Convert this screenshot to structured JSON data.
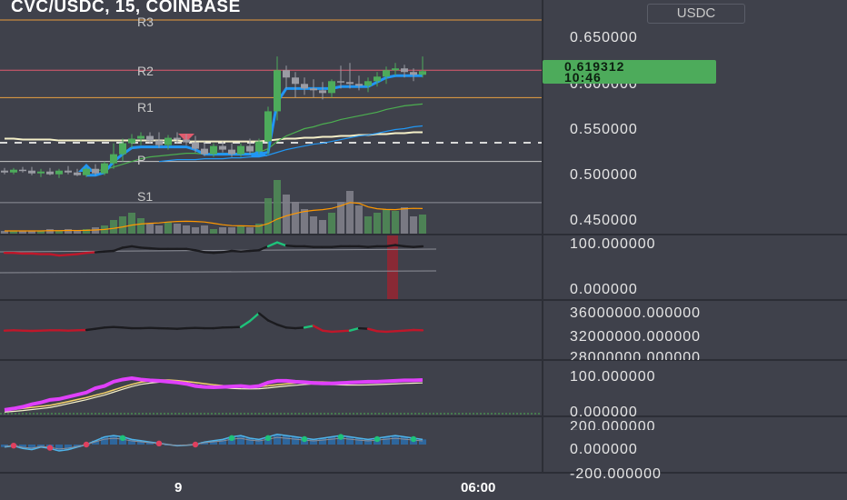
{
  "header": {
    "title": "CVC/USDC, 15, COINBASE",
    "quote_currency": "USDC"
  },
  "price_tag": {
    "price": "0.619312",
    "countdown": "10:46",
    "color": "#4dab5b"
  },
  "pivot_labels": [
    "R3",
    "R2",
    "R1",
    "P",
    "S1"
  ],
  "price_axis": {
    "ticks": [
      "0.650000",
      "0.600000",
      "0.550000",
      "0.500000",
      "0.450000"
    ]
  },
  "panes": {
    "osc1": {
      "ticks": [
        "100.000000",
        "0.000000"
      ]
    },
    "osc2": {
      "ticks": [
        "36000000.000000",
        "32000000.000000",
        "28000000.000000"
      ]
    },
    "osc3": {
      "ticks": [
        "100.000000",
        "0.000000"
      ]
    },
    "osc4": {
      "ticks": [
        "200.000000",
        "0.000000",
        "-200.000000"
      ]
    }
  },
  "time_axis": {
    "labels": [
      "9",
      "06:00"
    ]
  },
  "colors": {
    "background": "#3f414b",
    "up": "#4dab5b",
    "down": "#9a9ba3",
    "ema_fast": "#4caf50",
    "ema_slow": "#2196f3",
    "ma_long": "#f5f0c8",
    "supertrend": "#2196f3",
    "pivot": "#b0b0b0",
    "volume_ma": "#ff9800",
    "red_line": "#c0172a",
    "magenta": "#e040fb"
  },
  "chart_data": {
    "type": "candlestick",
    "symbol": "CVC/USDC",
    "interval": "15",
    "exchange": "COINBASE",
    "ylim": [
      0.44,
      0.675
    ],
    "pivots": {
      "R3": 0.675,
      "R2": 0.62,
      "R1": 0.59,
      "P": 0.52,
      "S1": 0.475
    },
    "candles": [
      {
        "o": 0.51,
        "h": 0.513,
        "l": 0.506,
        "c": 0.508
      },
      {
        "o": 0.508,
        "h": 0.513,
        "l": 0.506,
        "c": 0.511
      },
      {
        "o": 0.511,
        "h": 0.514,
        "l": 0.508,
        "c": 0.51
      },
      {
        "o": 0.51,
        "h": 0.514,
        "l": 0.505,
        "c": 0.507
      },
      {
        "o": 0.507,
        "h": 0.512,
        "l": 0.503,
        "c": 0.509
      },
      {
        "o": 0.509,
        "h": 0.513,
        "l": 0.505,
        "c": 0.506
      },
      {
        "o": 0.506,
        "h": 0.512,
        "l": 0.502,
        "c": 0.51
      },
      {
        "o": 0.51,
        "h": 0.515,
        "l": 0.506,
        "c": 0.508
      },
      {
        "o": 0.508,
        "h": 0.512,
        "l": 0.504,
        "c": 0.505
      },
      {
        "o": 0.505,
        "h": 0.514,
        "l": 0.503,
        "c": 0.512
      },
      {
        "o": 0.512,
        "h": 0.517,
        "l": 0.505,
        "c": 0.507
      },
      {
        "o": 0.507,
        "h": 0.52,
        "l": 0.505,
        "c": 0.518
      },
      {
        "o": 0.518,
        "h": 0.54,
        "l": 0.512,
        "c": 0.528
      },
      {
        "o": 0.528,
        "h": 0.545,
        "l": 0.52,
        "c": 0.54
      },
      {
        "o": 0.54,
        "h": 0.55,
        "l": 0.535,
        "c": 0.545
      },
      {
        "o": 0.545,
        "h": 0.552,
        "l": 0.538,
        "c": 0.548
      },
      {
        "o": 0.548,
        "h": 0.552,
        "l": 0.54,
        "c": 0.543
      },
      {
        "o": 0.543,
        "h": 0.552,
        "l": 0.535,
        "c": 0.538
      },
      {
        "o": 0.538,
        "h": 0.549,
        "l": 0.533,
        "c": 0.546
      },
      {
        "o": 0.546,
        "h": 0.552,
        "l": 0.54,
        "c": 0.544
      },
      {
        "o": 0.544,
        "h": 0.55,
        "l": 0.538,
        "c": 0.541
      },
      {
        "o": 0.541,
        "h": 0.548,
        "l": 0.53,
        "c": 0.534
      },
      {
        "o": 0.534,
        "h": 0.542,
        "l": 0.526,
        "c": 0.528
      },
      {
        "o": 0.528,
        "h": 0.54,
        "l": 0.525,
        "c": 0.537
      },
      {
        "o": 0.537,
        "h": 0.542,
        "l": 0.53,
        "c": 0.533
      },
      {
        "o": 0.533,
        "h": 0.54,
        "l": 0.525,
        "c": 0.528
      },
      {
        "o": 0.528,
        "h": 0.54,
        "l": 0.525,
        "c": 0.537
      },
      {
        "o": 0.537,
        "h": 0.545,
        "l": 0.528,
        "c": 0.531
      },
      {
        "o": 0.531,
        "h": 0.545,
        "l": 0.528,
        "c": 0.542
      },
      {
        "o": 0.542,
        "h": 0.58,
        "l": 0.528,
        "c": 0.575
      },
      {
        "o": 0.575,
        "h": 0.635,
        "l": 0.565,
        "c": 0.62
      },
      {
        "o": 0.62,
        "h": 0.625,
        "l": 0.6,
        "c": 0.612
      },
      {
        "o": 0.612,
        "h": 0.618,
        "l": 0.59,
        "c": 0.605
      },
      {
        "o": 0.605,
        "h": 0.612,
        "l": 0.593,
        "c": 0.6
      },
      {
        "o": 0.6,
        "h": 0.61,
        "l": 0.59,
        "c": 0.598
      },
      {
        "o": 0.598,
        "h": 0.607,
        "l": 0.588,
        "c": 0.595
      },
      {
        "o": 0.595,
        "h": 0.61,
        "l": 0.59,
        "c": 0.608
      },
      {
        "o": 0.608,
        "h": 0.625,
        "l": 0.6,
        "c": 0.607
      },
      {
        "o": 0.607,
        "h": 0.628,
        "l": 0.6,
        "c": 0.605
      },
      {
        "o": 0.605,
        "h": 0.614,
        "l": 0.598,
        "c": 0.603
      },
      {
        "o": 0.603,
        "h": 0.612,
        "l": 0.596,
        "c": 0.608
      },
      {
        "o": 0.608,
        "h": 0.618,
        "l": 0.602,
        "c": 0.613
      },
      {
        "o": 0.613,
        "h": 0.624,
        "l": 0.605,
        "c": 0.62
      },
      {
        "o": 0.62,
        "h": 0.628,
        "l": 0.614,
        "c": 0.622
      },
      {
        "o": 0.622,
        "h": 0.626,
        "l": 0.612,
        "c": 0.618
      },
      {
        "o": 0.618,
        "h": 0.622,
        "l": 0.608,
        "c": 0.615
      },
      {
        "o": 0.615,
        "h": 0.635,
        "l": 0.612,
        "c": 0.619
      }
    ],
    "volume": [
      2,
      2,
      2,
      2,
      2,
      3,
      2,
      3,
      2,
      3,
      4,
      5,
      8,
      10,
      12,
      9,
      6,
      5,
      7,
      6,
      5,
      4,
      5,
      3,
      4,
      4,
      5,
      4,
      6,
      20,
      30,
      22,
      18,
      14,
      10,
      8,
      12,
      18,
      24,
      16,
      10,
      12,
      14,
      13,
      15,
      10,
      11
    ],
    "volume_ylim": [
      0,
      36
    ],
    "ma_long": [
      0.545,
      0.545,
      0.544,
      0.544,
      0.544,
      0.544,
      0.543,
      0.543,
      0.543,
      0.543,
      0.543,
      0.543,
      0.543,
      0.543,
      0.543,
      0.543,
      0.543,
      0.543,
      0.543,
      0.543,
      0.542,
      0.542,
      0.542,
      0.542,
      0.542,
      0.542,
      0.542,
      0.542,
      0.542,
      0.543,
      0.544,
      0.545,
      0.545,
      0.546,
      0.546,
      0.547,
      0.547,
      0.548,
      0.548,
      0.549,
      0.549,
      0.55,
      0.55,
      0.551,
      0.551,
      0.552,
      0.552
    ],
    "ema_fast": [
      null,
      null,
      null,
      null,
      null,
      null,
      null,
      null,
      null,
      null,
      0.51,
      0.511,
      0.514,
      0.517,
      0.52,
      0.523,
      0.525,
      0.526,
      0.527,
      0.528,
      0.529,
      0.529,
      0.528,
      0.529,
      0.529,
      0.529,
      0.529,
      0.529,
      0.53,
      0.534,
      0.542,
      0.548,
      0.552,
      0.556,
      0.558,
      0.561,
      0.563,
      0.566,
      0.568,
      0.57,
      0.572,
      0.574,
      0.577,
      0.579,
      0.581,
      0.582,
      0.583
    ],
    "ema_slow": [
      null,
      null,
      null,
      null,
      null,
      null,
      null,
      null,
      null,
      null,
      null,
      null,
      null,
      null,
      null,
      null,
      null,
      0.52,
      0.521,
      0.522,
      0.522,
      0.522,
      0.523,
      0.523,
      0.523,
      0.524,
      0.524,
      0.525,
      0.525,
      0.527,
      0.53,
      0.533,
      0.535,
      0.537,
      0.539,
      0.54,
      0.542,
      0.544,
      0.546,
      0.548,
      0.549,
      0.551,
      0.553,
      0.555,
      0.556,
      0.558,
      0.559
    ],
    "supertrend": [
      null,
      null,
      null,
      null,
      null,
      null,
      null,
      null,
      null,
      0.505,
      0.505,
      0.508,
      0.52,
      0.528,
      0.535,
      0.536,
      0.536,
      0.536,
      0.536,
      0.536,
      0.536,
      0.533,
      0.528,
      0.528,
      0.528,
      0.528,
      0.528,
      0.528,
      0.528,
      0.53,
      0.585,
      0.6,
      0.6,
      0.6,
      0.6,
      0.6,
      0.6,
      0.602,
      0.602,
      0.602,
      0.602,
      0.607,
      0.612,
      0.614,
      0.614,
      0.614,
      0.614
    ],
    "osc1": [
      72,
      72,
      71,
      71,
      70,
      70,
      68,
      69,
      70,
      72,
      73,
      74,
      75,
      80,
      82,
      80,
      79,
      78,
      78,
      78,
      78,
      76,
      73,
      72,
      73,
      75,
      74,
      75,
      76,
      82,
      88,
      83,
      82,
      82,
      81,
      81,
      81,
      82,
      82,
      82,
      81,
      82,
      82,
      84,
      82,
      81,
      82
    ],
    "osc1_ylim": [
      0,
      100
    ],
    "osc2": [
      31900000,
      31950000,
      31900000,
      31850000,
      31900000,
      31950000,
      31950000,
      31900000,
      31950000,
      32000000,
      32200000,
      32400000,
      32500000,
      32400000,
      32300000,
      32300000,
      32350000,
      32300000,
      32250000,
      32200000,
      32300000,
      32350000,
      32300000,
      32300000,
      32400000,
      32450000,
      32500000,
      33500000,
      34800000,
      33600000,
      32900000,
      32400000,
      32300000,
      32400000,
      32700000,
      31900000,
      31700000,
      31800000,
      31900000,
      32300000,
      32200000,
      31800000,
      31700000,
      31800000,
      31900000,
      32000000,
      31950000
    ],
    "osc2_ylim": [
      27000000,
      37000000
    ],
    "osc3": [
      5,
      8,
      12,
      18,
      22,
      28,
      30,
      35,
      40,
      45,
      55,
      60,
      70,
      75,
      78,
      75,
      73,
      72,
      70,
      68,
      65,
      60,
      58,
      57,
      58,
      59,
      60,
      58,
      60,
      68,
      72,
      72,
      70,
      69,
      67,
      66,
      66,
      67,
      68,
      69,
      70,
      70,
      71,
      72,
      73,
      73,
      74
    ],
    "osc3_ylim": [
      -10,
      120
    ],
    "osc4": [
      -20,
      -10,
      -30,
      -40,
      -20,
      -30,
      -50,
      -40,
      -20,
      0,
      30,
      60,
      70,
      60,
      40,
      30,
      20,
      10,
      0,
      -10,
      -5,
      0,
      20,
      30,
      40,
      60,
      70,
      50,
      40,
      60,
      80,
      70,
      60,
      50,
      40,
      50,
      60,
      70,
      60,
      50,
      40,
      50,
      60,
      70,
      60,
      50,
      40
    ],
    "osc4_ylim": [
      -220,
      220
    ]
  }
}
